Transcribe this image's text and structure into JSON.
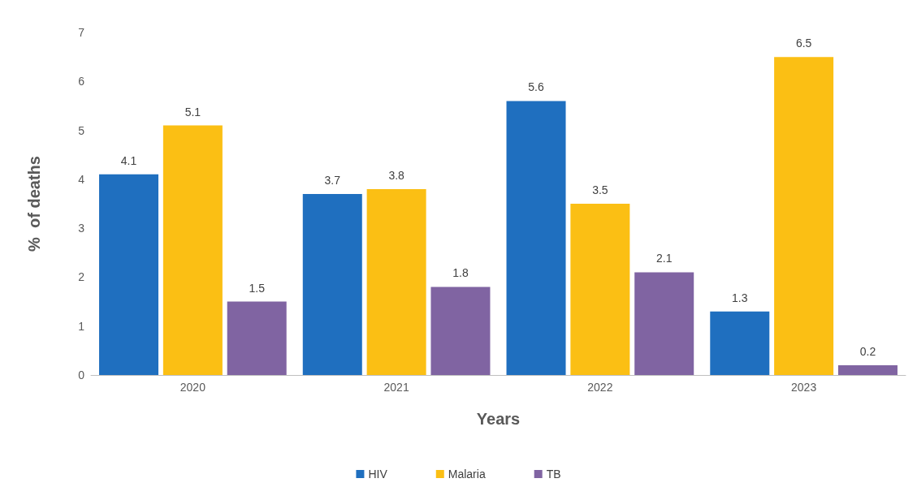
{
  "chart_data": {
    "type": "bar",
    "xlabel": "Years",
    "ylabel": "%  of deaths",
    "categories": [
      "2020",
      "2021",
      "2022",
      "2023"
    ],
    "series": [
      {
        "name": "HIV",
        "color": "#1f6fbf",
        "values": [
          4.1,
          3.7,
          5.6,
          1.3
        ]
      },
      {
        "name": "Malaria",
        "color": "#fbbf14",
        "values": [
          5.1,
          3.8,
          3.5,
          6.5
        ]
      },
      {
        "name": "TB",
        "color": "#8064a2",
        "values": [
          1.5,
          1.8,
          2.1,
          0.2
        ]
      }
    ],
    "ylim": [
      0,
      7
    ],
    "yticks": [
      0,
      1,
      2,
      3,
      4,
      5,
      6,
      7
    ],
    "grid": false,
    "legend": "bottom",
    "data_labels": true
  }
}
